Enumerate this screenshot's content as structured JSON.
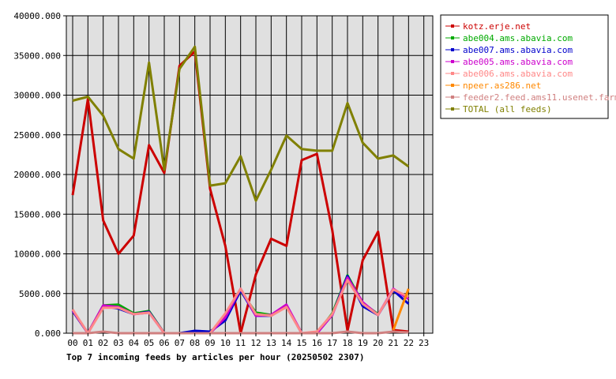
{
  "chart_data": {
    "type": "line",
    "title": "Top 7 incoming feeds by articles per hour (20250502 2307)",
    "xlabel": "",
    "ylabel": "",
    "ylim": [
      0,
      40000
    ],
    "grid": true,
    "legend_position": "right",
    "categories": [
      "00",
      "01",
      "02",
      "03",
      "04",
      "05",
      "06",
      "07",
      "08",
      "09",
      "10",
      "11",
      "12",
      "13",
      "14",
      "15",
      "16",
      "17",
      "18",
      "19",
      "20",
      "21",
      "22",
      "23"
    ],
    "y_ticks": [
      "0.000",
      "5000.000",
      "10000.000",
      "15000.000",
      "20000.000",
      "25000.000",
      "30000.000",
      "35000.000",
      "40000.000"
    ],
    "y_tick_values": [
      0,
      5000,
      10000,
      15000,
      20000,
      25000,
      30000,
      35000,
      40000
    ],
    "series": [
      {
        "name": "kotz.erje.net",
        "color": "#cc0000",
        "values": [
          17400,
          29500,
          14200,
          10000,
          12300,
          23700,
          20200,
          33700,
          35500,
          18200,
          11000,
          0,
          7400,
          11900,
          11000,
          21800,
          22600,
          13000,
          300,
          9200,
          12800,
          400,
          200,
          null
        ]
      },
      {
        "name": "abe004.ams.abavia.com",
        "color": "#00aa00",
        "values": [
          2900,
          0,
          3500,
          3600,
          2500,
          2800,
          0,
          0,
          0,
          0,
          2000,
          5300,
          2600,
          2300,
          3500,
          0,
          0,
          2500,
          7300,
          3800,
          2400,
          null,
          null,
          null
        ]
      },
      {
        "name": "abe007.ams.abavia.com",
        "color": "#0000cc",
        "values": [
          2800,
          0,
          3400,
          3100,
          2400,
          2700,
          0,
          0,
          300,
          200,
          1600,
          5400,
          2200,
          2200,
          3400,
          0,
          0,
          2300,
          7200,
          3400,
          2300,
          5400,
          3700,
          null
        ]
      },
      {
        "name": "abe005.ams.abavia.com",
        "color": "#cc00cc",
        "values": [
          2900,
          0,
          3500,
          3300,
          2400,
          2600,
          0,
          0,
          0,
          0,
          2000,
          5600,
          2200,
          2300,
          3600,
          0,
          0,
          2300,
          7000,
          3900,
          2300,
          5600,
          4300,
          null
        ]
      },
      {
        "name": "abe006.ams.abavia.com",
        "color": "#ff8888",
        "values": [
          3000,
          0,
          3200,
          3200,
          2400,
          2600,
          0,
          0,
          0,
          0,
          2500,
          5600,
          2400,
          2200,
          3300,
          0,
          200,
          2400,
          6700,
          3700,
          2300,
          5500,
          4600,
          null
        ]
      },
      {
        "name": "npeer.as286.net",
        "color": "#ff8800",
        "values": [
          null,
          null,
          null,
          null,
          null,
          null,
          null,
          null,
          null,
          null,
          null,
          null,
          null,
          null,
          null,
          null,
          null,
          null,
          null,
          null,
          null,
          400,
          5600,
          null
        ]
      },
      {
        "name": "feeder2.feed.ams11.usenet.farm",
        "color": "#d08080",
        "values": [
          0,
          0,
          200,
          0,
          0,
          0,
          0,
          0,
          0,
          0,
          0,
          0,
          0,
          0,
          0,
          0,
          0,
          0,
          200,
          0,
          0,
          200,
          100,
          null
        ]
      },
      {
        "name": "TOTAL (all feeds)",
        "color": "#808000",
        "values": [
          29300,
          29800,
          27400,
          23200,
          22000,
          34100,
          20600,
          33300,
          36100,
          18600,
          18900,
          22300,
          16700,
          20600,
          24900,
          23200,
          23000,
          23000,
          29000,
          24000,
          22000,
          22400,
          21000,
          null
        ]
      }
    ]
  }
}
